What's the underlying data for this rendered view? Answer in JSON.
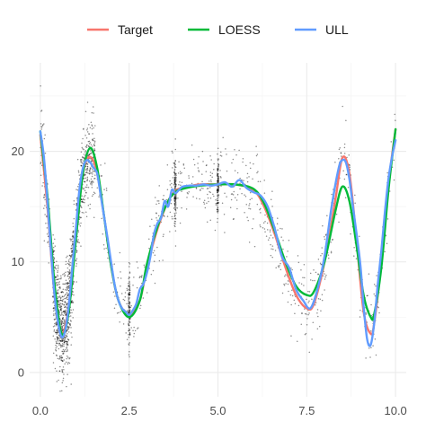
{
  "chart_data": {
    "type": "scatter",
    "title": "",
    "xlabel": "",
    "ylabel": "",
    "xlim": [
      -0.3,
      10.3
    ],
    "ylim": [
      -2.2,
      28
    ],
    "x_ticks": [
      0,
      2.5,
      5,
      7.5,
      10
    ],
    "x_tick_labels": [
      "0.0",
      "2.5",
      "5.0",
      "7.5",
      "10.0"
    ],
    "y_ticks": [
      0,
      10,
      20
    ],
    "y_tick_labels": [
      "0",
      "10",
      "20"
    ],
    "grid": true,
    "legend_position": "top",
    "legend": [
      {
        "name": "Target",
        "color": "#F8766D"
      },
      {
        "name": "LOESS",
        "color": "#00BA38"
      },
      {
        "name": "ULL",
        "color": "#619CFF"
      }
    ],
    "series": [
      {
        "name": "Target",
        "color": "#F8766D",
        "x": [
          0.0,
          0.2,
          0.4,
          0.6,
          0.8,
          1.0,
          1.2,
          1.4,
          1.6,
          1.8,
          2.0,
          2.2,
          2.5,
          2.8,
          3.0,
          3.3,
          3.6,
          3.8,
          4.0,
          4.5,
          5.0,
          5.5,
          6.0,
          6.3,
          6.6,
          6.9,
          7.2,
          7.5,
          7.7,
          8.0,
          8.3,
          8.5,
          8.7,
          8.9,
          9.1,
          9.3,
          9.4,
          9.6,
          9.8,
          10.0
        ],
        "y": [
          21.5,
          15.0,
          7.0,
          3.5,
          6.0,
          12.5,
          18.0,
          19.5,
          18.0,
          14.0,
          9.5,
          6.5,
          5.2,
          6.5,
          9.5,
          13.0,
          15.5,
          16.4,
          16.7,
          17.0,
          17.0,
          17.0,
          16.5,
          15.0,
          12.5,
          9.5,
          7.0,
          5.8,
          6.2,
          10.0,
          15.5,
          19.4,
          18.0,
          12.0,
          5.5,
          3.5,
          4.5,
          10.0,
          17.0,
          22.0
        ]
      },
      {
        "name": "LOESS",
        "color": "#00BA38",
        "x": [
          0.0,
          0.2,
          0.4,
          0.6,
          0.8,
          1.0,
          1.2,
          1.4,
          1.6,
          1.8,
          2.0,
          2.2,
          2.5,
          2.8,
          3.0,
          3.3,
          3.6,
          3.8,
          4.0,
          4.5,
          5.0,
          5.5,
          6.0,
          6.3,
          6.6,
          6.9,
          7.2,
          7.5,
          7.7,
          8.0,
          8.3,
          8.5,
          8.7,
          8.9,
          9.1,
          9.3,
          9.4,
          9.6,
          9.8,
          10.0
        ],
        "y": [
          21.8,
          16.0,
          8.0,
          3.5,
          5.5,
          12.0,
          18.0,
          20.3,
          18.5,
          14.0,
          9.5,
          6.5,
          5.0,
          6.5,
          9.8,
          13.2,
          15.5,
          16.3,
          16.6,
          16.9,
          17.0,
          17.0,
          16.6,
          15.3,
          12.8,
          10.0,
          7.8,
          7.0,
          7.3,
          10.0,
          14.5,
          16.8,
          15.5,
          11.5,
          7.0,
          5.0,
          5.3,
          9.5,
          16.5,
          22.0
        ]
      },
      {
        "name": "ULL",
        "color": "#619CFF",
        "x": [
          0.0,
          0.1,
          0.2,
          0.3,
          0.4,
          0.5,
          0.6,
          0.7,
          0.8,
          0.9,
          1.0,
          1.1,
          1.2,
          1.3,
          1.4,
          1.5,
          1.6,
          1.7,
          1.8,
          1.9,
          2.0,
          2.1,
          2.2,
          2.3,
          2.4,
          2.5,
          2.6,
          2.7,
          2.8,
          2.9,
          3.0,
          3.1,
          3.2,
          3.3,
          3.4,
          3.5,
          3.6,
          3.7,
          3.8,
          3.9,
          4.0,
          4.2,
          4.4,
          4.6,
          4.8,
          5.0,
          5.2,
          5.4,
          5.6,
          5.8,
          6.0,
          6.2,
          6.4,
          6.6,
          6.8,
          7.0,
          7.2,
          7.4,
          7.6,
          7.8,
          8.0,
          8.2,
          8.4,
          8.5,
          8.6,
          8.7,
          8.8,
          9.0,
          9.1,
          9.2,
          9.3,
          9.4,
          9.5,
          9.6,
          9.7,
          9.8,
          9.9,
          10.0
        ],
        "y": [
          21.8,
          19.5,
          15.5,
          11.0,
          7.0,
          4.5,
          3.2,
          3.8,
          6.0,
          9.5,
          13.0,
          16.5,
          18.5,
          19.2,
          19.0,
          18.5,
          18.0,
          16.0,
          14.0,
          12.0,
          9.8,
          7.8,
          6.5,
          5.8,
          5.5,
          5.2,
          5.6,
          6.2,
          7.5,
          8.0,
          9.0,
          10.5,
          12.5,
          13.5,
          14.0,
          15.5,
          15.0,
          16.5,
          16.2,
          16.5,
          16.8,
          16.9,
          16.9,
          17.0,
          16.9,
          17.0,
          17.2,
          16.8,
          17.4,
          16.7,
          16.3,
          16.0,
          15.0,
          13.0,
          10.5,
          9.5,
          7.5,
          6.5,
          5.8,
          7.5,
          10.5,
          15.0,
          18.5,
          19.2,
          19.0,
          17.5,
          15.0,
          10.0,
          6.0,
          3.0,
          2.5,
          4.5,
          8.0,
          11.0,
          14.5,
          17.5,
          19.5,
          21.0
        ]
      }
    ],
    "scatter_points": "scattered black points around the target curve, dense near x = 0.6 and x = 1.2, with vertical clusters near x = 2.5, 3.8 and 5.0"
  }
}
